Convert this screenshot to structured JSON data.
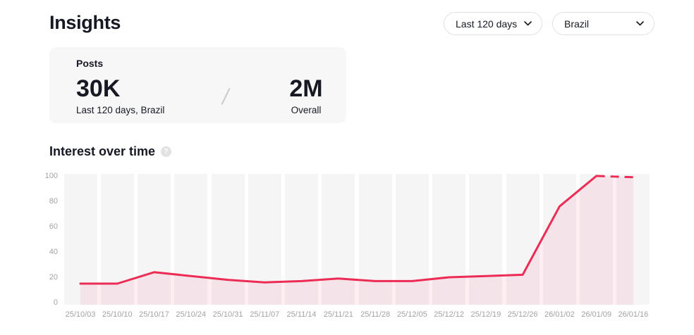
{
  "header": {
    "title": "Insights",
    "date_range_dropdown": {
      "value": "Last 120 days"
    },
    "region_dropdown": {
      "value": "Brazil"
    }
  },
  "posts_card": {
    "title": "Posts",
    "period_value": "30K",
    "period_caption": "Last 120 days, Brazil",
    "overall_value": "2M",
    "overall_caption": "Overall"
  },
  "section": {
    "title": "Interest over time",
    "help_glyph": "?"
  },
  "chart_data": {
    "type": "area",
    "title": "Interest over time",
    "x": [
      "25/10/03",
      "25/10/10",
      "25/10/17",
      "25/10/24",
      "25/10/31",
      "25/11/07",
      "25/11/14",
      "25/11/21",
      "25/11/28",
      "25/12/05",
      "25/12/12",
      "25/12/19",
      "25/12/26",
      "26/01/02",
      "26/01/09",
      "26/01/16"
    ],
    "values": [
      15,
      15,
      24,
      21,
      18,
      16,
      17,
      19,
      17,
      17,
      20,
      21,
      22,
      76,
      100,
      99
    ],
    "dashed_from_index": 14,
    "dashed_style": "final segment drawn dashed",
    "xlabel": "",
    "ylabel": "",
    "ylim": [
      0,
      100
    ],
    "yticks": [
      0,
      20,
      40,
      60,
      80,
      100
    ],
    "grid": "vertical column bands, one per x category",
    "legend": "none",
    "colors": {
      "line": "#ec2c55",
      "area_fill": "rgba(236,44,85,0.08)",
      "column_band": "#f5f5f6",
      "axis_text": "#a1a2a6"
    }
  }
}
